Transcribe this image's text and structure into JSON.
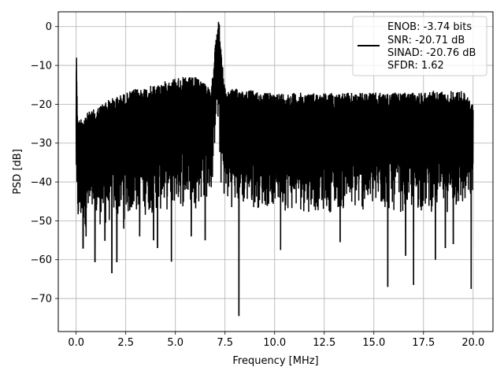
{
  "chart_data": {
    "type": "line",
    "title": "",
    "xlabel": "Frequency [MHz]",
    "ylabel": "PSD [dB]",
    "xlim": [
      -0.9,
      21.0
    ],
    "ylim": [
      -78.5,
      3.8
    ],
    "x_ticks": [
      0.0,
      2.5,
      5.0,
      7.5,
      10.0,
      12.5,
      15.0,
      17.5,
      20.0
    ],
    "x_tick_labels": [
      "0.0",
      "2.5",
      "5.0",
      "7.5",
      "10.0",
      "12.5",
      "15.0",
      "17.5",
      "20.0"
    ],
    "y_ticks": [
      0,
      -10,
      -20,
      -30,
      -40,
      -50,
      -60,
      -70
    ],
    "y_tick_labels": [
      "0",
      "−10",
      "−20",
      "−30",
      "−40",
      "−50",
      "−60",
      "−70"
    ],
    "grid": true,
    "legend_placement": "top-right",
    "legend_lines": [
      "ENOB: -3.74 bits",
      "SNR: -20.71 dB",
      "SINAD: -20.76 dB",
      "SFDR: 1.62"
    ],
    "line_color": "#000000",
    "series": [
      {
        "x": [
          0.0,
          0.02,
          0.04,
          0.06,
          0.1,
          0.3,
          0.6,
          1.0,
          1.5,
          2.0,
          2.5,
          3.0,
          3.5,
          4.0,
          4.5,
          5.0,
          5.5,
          6.0,
          6.5,
          6.8,
          6.95,
          7.0,
          7.05,
          7.1,
          7.15,
          7.2,
          7.3,
          7.5,
          8.0,
          8.5,
          9.0,
          9.5,
          10.0,
          11.0,
          12.0,
          13.0,
          14.0,
          15.0,
          16.0,
          17.0,
          18.0,
          19.0,
          19.5,
          20.0
        ],
        "top": [
          -20,
          -8,
          -18,
          -22,
          -26,
          -25,
          -24,
          -23,
          -21,
          -20,
          -19,
          -18,
          -17.5,
          -17,
          -16,
          -15,
          -15,
          -15,
          -16,
          -19,
          -10,
          -5,
          -3,
          -2,
          -1,
          0,
          -8,
          -18,
          -18,
          -18,
          -18.5,
          -19,
          -19,
          -19,
          -19,
          -19,
          -19,
          -19,
          -19,
          -19,
          -18.5,
          -18.5,
          -18.5,
          -22
        ],
        "bottom": [
          -40,
          -45,
          -50,
          -53,
          -53,
          -52,
          -52,
          -51,
          -52,
          -50,
          -50,
          -49,
          -49,
          -48,
          -48,
          -47,
          -47,
          -47,
          -45,
          -44,
          -36,
          -28,
          -25,
          -24,
          -28,
          -32,
          -42,
          -46,
          -47,
          -47,
          -47,
          -47,
          -47,
          -48,
          -48,
          -48,
          -48,
          -48,
          -48,
          -48,
          -48,
          -48,
          -48,
          -45
        ]
      }
    ],
    "dips": [
      {
        "x": 0.35,
        "y": -57
      },
      {
        "x": 0.5,
        "y": -54
      },
      {
        "x": 0.95,
        "y": -60.5
      },
      {
        "x": 1.45,
        "y": -55
      },
      {
        "x": 1.8,
        "y": -63.5
      },
      {
        "x": 2.05,
        "y": -60.5
      },
      {
        "x": 2.4,
        "y": -52
      },
      {
        "x": 3.2,
        "y": -54
      },
      {
        "x": 3.9,
        "y": -55
      },
      {
        "x": 4.1,
        "y": -57
      },
      {
        "x": 4.8,
        "y": -60.5
      },
      {
        "x": 5.8,
        "y": -54
      },
      {
        "x": 6.5,
        "y": -55
      },
      {
        "x": 8.2,
        "y": -74.5
      },
      {
        "x": 10.3,
        "y": -57.5
      },
      {
        "x": 13.3,
        "y": -55.5
      },
      {
        "x": 15.7,
        "y": -67
      },
      {
        "x": 16.6,
        "y": -59
      },
      {
        "x": 17.0,
        "y": -66.5
      },
      {
        "x": 18.1,
        "y": -60
      },
      {
        "x": 18.6,
        "y": -57
      },
      {
        "x": 19.0,
        "y": -56
      },
      {
        "x": 19.9,
        "y": -67.5
      }
    ]
  }
}
